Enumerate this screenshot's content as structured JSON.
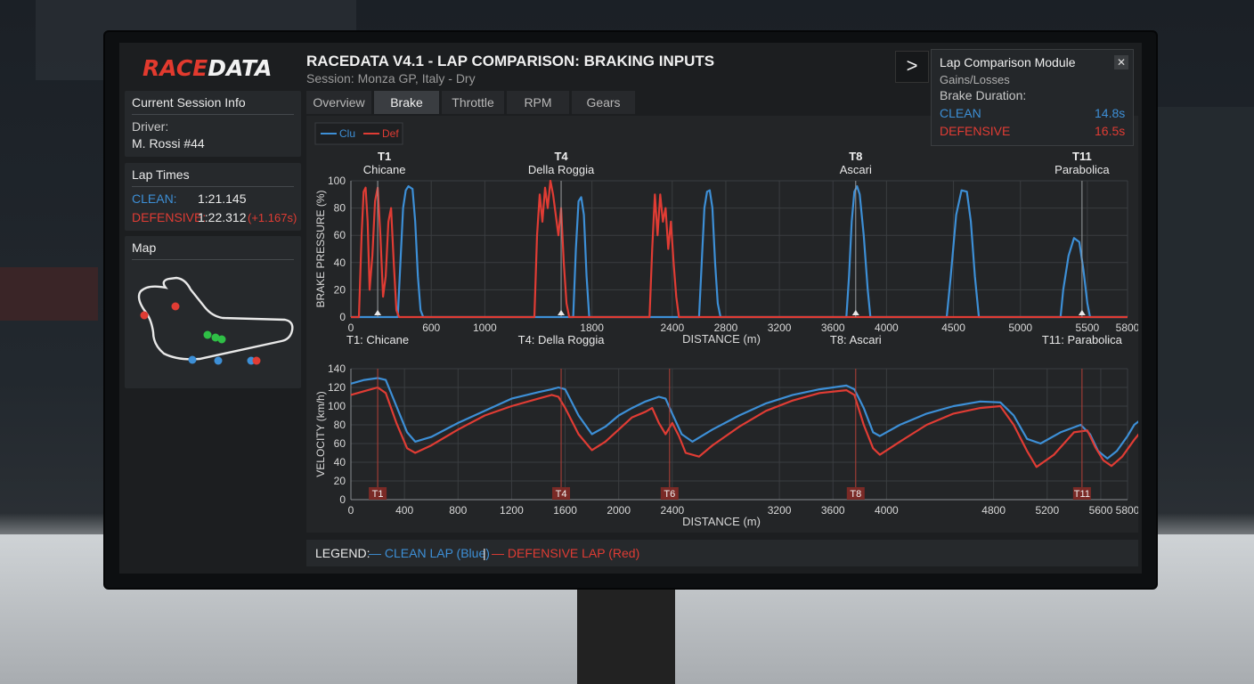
{
  "app": {
    "logo_part1": "RACE",
    "logo_part2": "DATA",
    "title": "RACEDATA V4.1 - LAP COMPARISON: BRAKING INPUTS",
    "subtitle": "Session: Monza GP, Italy - Dry"
  },
  "tabs": [
    "Overview",
    "Brake",
    "Throttle",
    "RPM",
    "Gears"
  ],
  "active_tab": "Brake",
  "sidebar": {
    "session": {
      "header": "Current Session Info",
      "driver_label": "Driver:",
      "driver_value": "M. Rossi #44"
    },
    "lap_times": {
      "header": "Lap Times",
      "clean_label": "CLEAN:",
      "clean_time": "1:21.145",
      "defensive_label": "DEFENSIVE:",
      "defensive_time": "1:22.312",
      "defensive_delta": "(+1.167s)"
    },
    "map": {
      "header": "Map"
    }
  },
  "module": {
    "title": "Lap Comparison Module",
    "line1": "Gains/Losses",
    "line2": "Brake Duration:",
    "clean_label": "CLEAN",
    "clean_value": "14.8s",
    "defensive_label": "DEFENSIVE",
    "defensive_value": "16.5s",
    "close_icon": "close-icon",
    "next_icon": ">"
  },
  "legend": {
    "prefix": "LEGEND:",
    "clean": "— CLEAN LAP (Blue)",
    "sep": "|",
    "defensive": "— DEFENSIVE LAP (Red)"
  },
  "colors": {
    "clean": "#3d8fd6",
    "defensive": "#e03c34",
    "grid": "#3a3d40",
    "bg": "#232527"
  },
  "chart_data": [
    {
      "type": "line",
      "ylabel": "BRAKE PRESSURE (%)",
      "xlabel": "DISTANCE (m)",
      "xlim": [
        0,
        5800
      ],
      "ylim": [
        0,
        100
      ],
      "xticks": [
        0,
        600,
        1000,
        1800,
        2400,
        2800,
        3200,
        3600,
        4000,
        4500,
        5000,
        5500,
        5800
      ],
      "yticks": [
        0,
        20,
        40,
        60,
        80,
        100
      ],
      "legend": {
        "clean": "Clu",
        "defensive": "Def"
      },
      "corners_top": [
        {
          "id": "T1",
          "name": "Chicane",
          "x": 250
        },
        {
          "id": "T4",
          "name": "Della Roggia",
          "x": 1570
        },
        {
          "id": "T8",
          "name": "Ascari",
          "x": 3770
        },
        {
          "id": "T11",
          "name": "Parabolica",
          "x": 5460
        }
      ],
      "corners_bottom": [
        {
          "label": "T1: Chicane",
          "x": 200
        },
        {
          "label": "T4: Della Roggia",
          "x": 1570
        },
        {
          "label": "T8: Ascari",
          "x": 3770
        },
        {
          "label": "T11: Parabolica",
          "x": 5460
        }
      ],
      "series": [
        {
          "name": "Clu",
          "points": [
            [
              0,
              0
            ],
            [
              350,
              0
            ],
            [
              370,
              40
            ],
            [
              390,
              80
            ],
            [
              410,
              93
            ],
            [
              430,
              96
            ],
            [
              460,
              94
            ],
            [
              480,
              70
            ],
            [
              500,
              30
            ],
            [
              520,
              5
            ],
            [
              540,
              0
            ],
            [
              1800,
              0
            ],
            [
              1660,
              0
            ],
            [
              1680,
              50
            ],
            [
              1700,
              85
            ],
            [
              1720,
              88
            ],
            [
              1740,
              75
            ],
            [
              1760,
              30
            ],
            [
              1780,
              0
            ],
            [
              2500,
              0
            ],
            [
              2600,
              0
            ],
            [
              2620,
              40
            ],
            [
              2640,
              80
            ],
            [
              2660,
              92
            ],
            [
              2680,
              93
            ],
            [
              2700,
              80
            ],
            [
              2720,
              40
            ],
            [
              2740,
              10
            ],
            [
              2760,
              0
            ],
            [
              3700,
              0
            ],
            [
              3720,
              30
            ],
            [
              3740,
              70
            ],
            [
              3760,
              92
            ],
            [
              3780,
              96
            ],
            [
              3800,
              90
            ],
            [
              3830,
              60
            ],
            [
              3860,
              20
            ],
            [
              3880,
              0
            ],
            [
              4450,
              0
            ],
            [
              4480,
              30
            ],
            [
              4520,
              75
            ],
            [
              4560,
              93
            ],
            [
              4600,
              92
            ],
            [
              4630,
              70
            ],
            [
              4660,
              30
            ],
            [
              4690,
              0
            ],
            [
              5300,
              0
            ],
            [
              5320,
              20
            ],
            [
              5360,
              45
            ],
            [
              5400,
              58
            ],
            [
              5440,
              55
            ],
            [
              5470,
              35
            ],
            [
              5500,
              10
            ],
            [
              5520,
              0
            ],
            [
              5800,
              0
            ]
          ]
        },
        {
          "name": "Def",
          "points": [
            [
              0,
              0
            ],
            [
              60,
              0
            ],
            [
              80,
              60
            ],
            [
              95,
              92
            ],
            [
              110,
              95
            ],
            [
              125,
              70
            ],
            [
              140,
              20
            ],
            [
              160,
              45
            ],
            [
              180,
              85
            ],
            [
              200,
              95
            ],
            [
              220,
              60
            ],
            [
              240,
              15
            ],
            [
              260,
              30
            ],
            [
              280,
              70
            ],
            [
              300,
              80
            ],
            [
              320,
              40
            ],
            [
              340,
              5
            ],
            [
              360,
              0
            ],
            [
              1370,
              0
            ],
            [
              1390,
              60
            ],
            [
              1410,
              90
            ],
            [
              1430,
              70
            ],
            [
              1450,
              95
            ],
            [
              1470,
              80
            ],
            [
              1490,
              100
            ],
            [
              1510,
              90
            ],
            [
              1530,
              75
            ],
            [
              1550,
              60
            ],
            [
              1570,
              80
            ],
            [
              1590,
              40
            ],
            [
              1610,
              10
            ],
            [
              1630,
              0
            ],
            [
              2230,
              0
            ],
            [
              2250,
              50
            ],
            [
              2270,
              90
            ],
            [
              2290,
              60
            ],
            [
              2310,
              90
            ],
            [
              2330,
              70
            ],
            [
              2350,
              80
            ],
            [
              2370,
              50
            ],
            [
              2390,
              70
            ],
            [
              2410,
              40
            ],
            [
              2430,
              15
            ],
            [
              2450,
              0
            ],
            [
              5800,
              0
            ]
          ]
        }
      ]
    },
    {
      "type": "line",
      "ylabel": "VELOCITY (km/h)",
      "xlabel": "DISTANCE (m)",
      "xlim": [
        0,
        5800
      ],
      "ylim": [
        0,
        140
      ],
      "xticks": [
        0,
        400,
        800,
        1200,
        1600,
        2000,
        2400,
        3200,
        3600,
        4000,
        4800,
        5200,
        5600,
        5800
      ],
      "yticks": [
        0,
        20,
        40,
        60,
        80,
        100,
        120,
        140
      ],
      "markers": [
        {
          "id": "T1",
          "x": 200
        },
        {
          "id": "T4",
          "x": 1570
        },
        {
          "id": "T6",
          "x": 2380
        },
        {
          "id": "T8",
          "x": 3770
        },
        {
          "id": "T11",
          "x": 5460
        }
      ],
      "series": [
        {
          "name": "CLEAN LAP",
          "points": [
            [
              0,
              124
            ],
            [
              100,
              128
            ],
            [
              200,
              130
            ],
            [
              260,
              128
            ],
            [
              340,
              100
            ],
            [
              420,
              72
            ],
            [
              480,
              62
            ],
            [
              600,
              67
            ],
            [
              800,
              82
            ],
            [
              1000,
              95
            ],
            [
              1200,
              108
            ],
            [
              1400,
              115
            ],
            [
              1500,
              118
            ],
            [
              1550,
              120
            ],
            [
              1600,
              118
            ],
            [
              1700,
              90
            ],
            [
              1800,
              70
            ],
            [
              1900,
              78
            ],
            [
              2000,
              90
            ],
            [
              2100,
              98
            ],
            [
              2200,
              105
            ],
            [
              2300,
              110
            ],
            [
              2350,
              108
            ],
            [
              2400,
              92
            ],
            [
              2470,
              70
            ],
            [
              2550,
              62
            ],
            [
              2700,
              75
            ],
            [
              2900,
              90
            ],
            [
              3100,
              103
            ],
            [
              3300,
              112
            ],
            [
              3500,
              118
            ],
            [
              3700,
              122
            ],
            [
              3760,
              118
            ],
            [
              3830,
              98
            ],
            [
              3900,
              72
            ],
            [
              3950,
              68
            ],
            [
              4100,
              80
            ],
            [
              4300,
              92
            ],
            [
              4500,
              100
            ],
            [
              4700,
              105
            ],
            [
              4850,
              104
            ],
            [
              4950,
              90
            ],
            [
              5050,
              65
            ],
            [
              5150,
              60
            ],
            [
              5300,
              72
            ],
            [
              5450,
              80
            ],
            [
              5520,
              70
            ],
            [
              5580,
              52
            ],
            [
              5650,
              44
            ],
            [
              5720,
              52
            ],
            [
              5800,
              68
            ],
            [
              5850,
              80
            ],
            [
              5940,
              90
            ]
          ]
        },
        {
          "name": "DEFENSIVE LAP",
          "points": [
            [
              0,
              112
            ],
            [
              100,
              116
            ],
            [
              200,
              120
            ],
            [
              260,
              114
            ],
            [
              340,
              82
            ],
            [
              420,
              55
            ],
            [
              480,
              50
            ],
            [
              600,
              58
            ],
            [
              800,
              75
            ],
            [
              1000,
              90
            ],
            [
              1200,
              100
            ],
            [
              1400,
              108
            ],
            [
              1500,
              112
            ],
            [
              1550,
              110
            ],
            [
              1600,
              98
            ],
            [
              1700,
              70
            ],
            [
              1800,
              53
            ],
            [
              1900,
              62
            ],
            [
              2000,
              75
            ],
            [
              2100,
              88
            ],
            [
              2200,
              94
            ],
            [
              2250,
              98
            ],
            [
              2300,
              82
            ],
            [
              2350,
              70
            ],
            [
              2400,
              82
            ],
            [
              2450,
              68
            ],
            [
              2500,
              50
            ],
            [
              2600,
              46
            ],
            [
              2700,
              58
            ],
            [
              2900,
              78
            ],
            [
              3100,
              95
            ],
            [
              3300,
              106
            ],
            [
              3500,
              114
            ],
            [
              3700,
              117
            ],
            [
              3760,
              112
            ],
            [
              3830,
              80
            ],
            [
              3900,
              55
            ],
            [
              3950,
              48
            ],
            [
              4100,
              62
            ],
            [
              4300,
              80
            ],
            [
              4500,
              92
            ],
            [
              4700,
              98
            ],
            [
              4850,
              100
            ],
            [
              4950,
              80
            ],
            [
              5050,
              52
            ],
            [
              5120,
              35
            ],
            [
              5250,
              48
            ],
            [
              5400,
              72
            ],
            [
              5500,
              74
            ],
            [
              5560,
              56
            ],
            [
              5620,
              42
            ],
            [
              5680,
              36
            ],
            [
              5760,
              46
            ],
            [
              5850,
              64
            ],
            [
              5940,
              80
            ]
          ]
        }
      ]
    }
  ]
}
